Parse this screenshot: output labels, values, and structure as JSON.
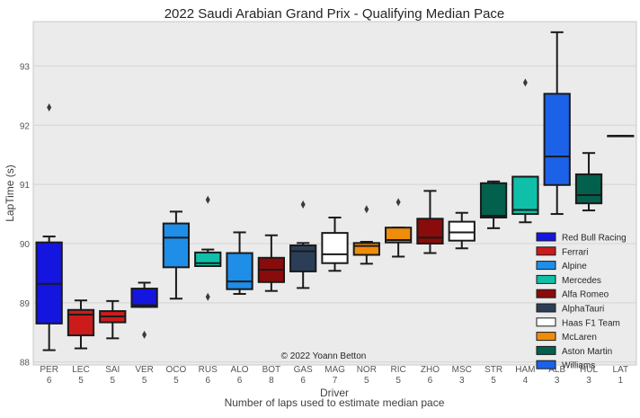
{
  "chart_data": {
    "type": "box",
    "title": "2022 Saudi Arabian Grand Prix - Qualifying Median Pace",
    "xlabel": "Driver",
    "xlabel2": "Number of laps used to estimate median pace",
    "ylabel": "LapTime (s)",
    "ylim": [
      87.95,
      93.75
    ],
    "yticks": [
      88,
      89,
      90,
      91,
      92,
      93
    ],
    "grid": true,
    "legend_position": "lower-right",
    "watermark": "© 2022 Yoann Betton",
    "teams": [
      {
        "name": "Red Bull Racing",
        "color": "#1515e0"
      },
      {
        "name": "Ferrari",
        "color": "#cc1b1b"
      },
      {
        "name": "Alpine",
        "color": "#1e8ee8"
      },
      {
        "name": "Mercedes",
        "color": "#10bfa8"
      },
      {
        "name": "Alfa Romeo",
        "color": "#8a0b0b"
      },
      {
        "name": "AlphaTauri",
        "color": "#2c3e57"
      },
      {
        "name": "Haas F1 Team",
        "color": "#ffffff"
      },
      {
        "name": "McLaren",
        "color": "#f08c0c"
      },
      {
        "name": "Aston Martin",
        "color": "#03604c"
      },
      {
        "name": "Williams",
        "color": "#1c62e8"
      }
    ],
    "drivers": [
      {
        "driver": "PER",
        "laps": "6",
        "team": 0,
        "q1": 88.65,
        "median": 89.32,
        "q3": 90.02,
        "whislo": 88.2,
        "whishi": 90.12,
        "fliers": [
          92.3
        ]
      },
      {
        "driver": "LEC",
        "laps": "5",
        "team": 1,
        "q1": 88.45,
        "median": 88.8,
        "q3": 88.88,
        "whislo": 88.23,
        "whishi": 89.04,
        "fliers": []
      },
      {
        "driver": "SAI",
        "laps": "5",
        "team": 1,
        "q1": 88.67,
        "median": 88.77,
        "q3": 88.86,
        "whislo": 88.4,
        "whishi": 89.03,
        "fliers": []
      },
      {
        "driver": "VER",
        "laps": "5",
        "team": 0,
        "q1": 88.93,
        "median": 88.96,
        "q3": 89.24,
        "whislo": 88.93,
        "whishi": 89.34,
        "fliers": [
          88.46
        ]
      },
      {
        "driver": "OCO",
        "laps": "5",
        "team": 2,
        "q1": 89.6,
        "median": 90.1,
        "q3": 90.34,
        "whislo": 89.07,
        "whishi": 90.54,
        "fliers": []
      },
      {
        "driver": "RUS",
        "laps": "6",
        "team": 3,
        "q1": 89.62,
        "median": 89.67,
        "q3": 89.85,
        "whislo": 89.62,
        "whishi": 89.9,
        "fliers": [
          90.74,
          89.1
        ]
      },
      {
        "driver": "ALO",
        "laps": "6",
        "team": 2,
        "q1": 89.23,
        "median": 89.36,
        "q3": 89.84,
        "whislo": 89.15,
        "whishi": 90.19,
        "fliers": []
      },
      {
        "driver": "BOT",
        "laps": "8",
        "team": 4,
        "q1": 89.35,
        "median": 89.56,
        "q3": 89.76,
        "whislo": 89.2,
        "whishi": 90.14,
        "fliers": []
      },
      {
        "driver": "GAS",
        "laps": "6",
        "team": 5,
        "q1": 89.53,
        "median": 89.87,
        "q3": 89.97,
        "whislo": 89.25,
        "whishi": 90.01,
        "fliers": [
          90.66
        ]
      },
      {
        "driver": "MAG",
        "laps": "7",
        "team": 6,
        "q1": 89.67,
        "median": 89.82,
        "q3": 90.18,
        "whislo": 89.54,
        "whishi": 90.44,
        "fliers": []
      },
      {
        "driver": "NOR",
        "laps": "5",
        "team": 7,
        "q1": 89.81,
        "median": 89.96,
        "q3": 90.01,
        "whislo": 89.66,
        "whishi": 90.03,
        "fliers": [
          90.58
        ]
      },
      {
        "driver": "RIC",
        "laps": "5",
        "team": 7,
        "q1": 90.02,
        "median": 90.06,
        "q3": 90.27,
        "whislo": 89.78,
        "whishi": 90.27,
        "fliers": [
          90.7
        ]
      },
      {
        "driver": "ZHO",
        "laps": "6",
        "team": 4,
        "q1": 90.0,
        "median": 90.1,
        "q3": 90.42,
        "whislo": 89.84,
        "whishi": 90.89,
        "fliers": []
      },
      {
        "driver": "MSC",
        "laps": "3",
        "team": 6,
        "q1": 90.05,
        "median": 90.19,
        "q3": 90.37,
        "whislo": 89.92,
        "whishi": 90.52,
        "fliers": []
      },
      {
        "driver": "STR",
        "laps": "5",
        "team": 8,
        "q1": 90.44,
        "median": 90.47,
        "q3": 91.02,
        "whislo": 90.26,
        "whishi": 91.05,
        "fliers": []
      },
      {
        "driver": "HAM",
        "laps": "4",
        "team": 3,
        "q1": 90.5,
        "median": 90.57,
        "q3": 91.13,
        "whislo": 90.36,
        "whishi": 91.13,
        "fliers": [
          92.72
        ]
      },
      {
        "driver": "ALB",
        "laps": "3",
        "team": 9,
        "q1": 90.99,
        "median": 91.47,
        "q3": 92.53,
        "whislo": 90.5,
        "whishi": 93.57,
        "fliers": []
      },
      {
        "driver": "HUL",
        "laps": "3",
        "team": 8,
        "q1": 90.68,
        "median": 90.82,
        "q3": 91.17,
        "whislo": 90.56,
        "whishi": 91.53,
        "fliers": []
      },
      {
        "driver": "LAT",
        "laps": "1",
        "team": 9,
        "q1": 91.82,
        "median": 91.82,
        "q3": 91.82,
        "whislo": 91.82,
        "whishi": 91.82,
        "fliers": []
      }
    ]
  }
}
